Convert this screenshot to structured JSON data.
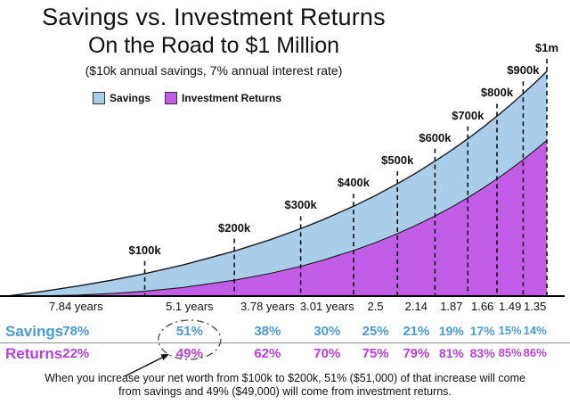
{
  "colors": {
    "savings_fill": "#aacdea",
    "returns_fill": "#c25de8",
    "savings_text": "#4a9ad4",
    "returns_text": "#b93fd6",
    "outline": "#1a1a1a"
  },
  "chart_data": {
    "type": "area",
    "title": "Savings vs. Investment Returns",
    "subtitle": "On the Road to $1 Million",
    "note": "($10k annual savings, 7% annual interest rate)",
    "x_unit": "years",
    "ylim_dollars": [
      0,
      1000000
    ],
    "legend": [
      {
        "label": "Savings",
        "color": "#aacdea"
      },
      {
        "label": "Investment Returns",
        "color": "#c25de8"
      }
    ],
    "x_years": [
      0,
      2,
      4,
      6,
      7.84,
      10,
      12.94,
      15,
      16.72,
      18,
      19.73,
      21,
      22.23,
      23.3,
      24.37,
      25.3,
      26.24,
      27.1,
      27.9,
      28.65,
      29.39,
      30.1,
      30.74
    ],
    "total_k": [
      0,
      20.7,
      44.4,
      71.5,
      100,
      138.2,
      200,
      251.3,
      300,
      340,
      400,
      448.6,
      500,
      548.3,
      600.2,
      648.4,
      700.4,
      750.9,
      800.6,
      849.7,
      900.7,
      952,
      1000.5
    ],
    "savings_k": [
      0,
      20,
      40,
      60,
      78.4,
      100,
      129.4,
      150,
      167.2,
      180,
      197.3,
      210,
      222.3,
      233,
      243.7,
      253,
      262.4,
      271,
      279,
      286.5,
      293.9,
      301,
      307.4
    ],
    "returns_k": [
      0,
      0.7,
      4.4,
      11.5,
      21.6,
      38.2,
      70.6,
      101.3,
      132.7,
      160,
      202.6,
      238.6,
      277.7,
      315.3,
      356.5,
      395.4,
      438,
      479.9,
      521.6,
      563.2,
      606.8,
      651,
      693.1
    ],
    "milestones": [
      {
        "label": "$100k",
        "year": 7.84,
        "value_k": 100
      },
      {
        "label": "$200k",
        "year": 12.94,
        "value_k": 200
      },
      {
        "label": "$300k",
        "year": 16.72,
        "value_k": 300
      },
      {
        "label": "$400k",
        "year": 19.73,
        "value_k": 400
      },
      {
        "label": "$500k",
        "year": 22.23,
        "value_k": 500
      },
      {
        "label": "$600k",
        "year": 24.37,
        "value_k": 600
      },
      {
        "label": "$700k",
        "year": 26.24,
        "value_k": 700
      },
      {
        "label": "$800k",
        "year": 27.9,
        "value_k": 800
      },
      {
        "label": "$900k",
        "year": 29.39,
        "value_k": 900
      },
      {
        "label": "$1m",
        "year": 30.74,
        "value_k": 1000
      }
    ],
    "segment_years": [
      "7.84 years",
      "5.1 years",
      "3.78 years",
      "3.01 years",
      "2.5",
      "2.14",
      "1.87",
      "1.66",
      "1.49",
      "1.35"
    ],
    "savings_row_label": "Savings",
    "returns_row_label": "Returns",
    "savings_pct": [
      "78%",
      "51%",
      "38%",
      "30%",
      "25%",
      "21%",
      "19%",
      "17%",
      "15%",
      "14%"
    ],
    "returns_pct": [
      "22%",
      "49%",
      "62%",
      "70%",
      "75%",
      "79%",
      "81%",
      "83%",
      "85%",
      "86%"
    ]
  },
  "annotation": {
    "line1": "When you increase your net worth from $100k to $200k, 51% ($51,000) of that increase will come",
    "line2": "from savings and 49% ($49,000) will come from investment returns."
  }
}
